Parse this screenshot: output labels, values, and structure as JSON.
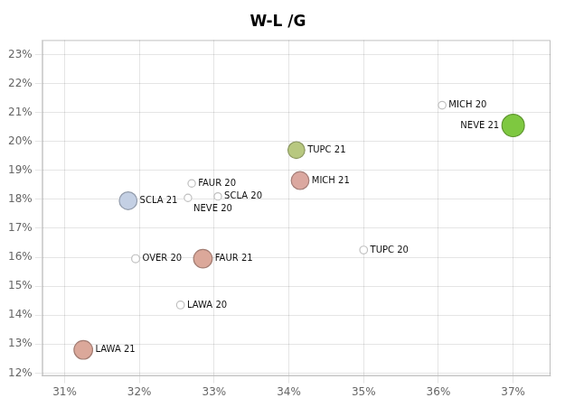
{
  "chart_data": {
    "type": "bubble",
    "title": "W-L /G",
    "labels": [
      "LAWA 21",
      "OVER 20",
      "SCLA 21",
      "LAWA 20",
      "NEVE 20",
      "FAUR 20",
      "SCLA 20",
      "FAUR 21",
      "TUPC 21",
      "MICH 21",
      "TUPC 20",
      "MICH 20",
      "NEVE 21"
    ],
    "x": [
      0.3125,
      0.3195,
      0.3185,
      0.3255,
      0.3265,
      0.327,
      0.3305,
      0.3285,
      0.341,
      0.3415,
      0.35,
      0.3605,
      0.37
    ],
    "values": [
      0.128,
      0.1595,
      0.1795,
      0.1435,
      0.1805,
      0.1855,
      0.181,
      0.1595,
      0.197,
      0.1865,
      0.1625,
      0.2125,
      0.2055
    ],
    "sizes": [
      220,
      40,
      200,
      38,
      35,
      35,
      35,
      220,
      180,
      200,
      38,
      38,
      320
    ],
    "colors": [
      "#dba89a",
      "#ffffff",
      "#c4d0e4",
      "#ffffff",
      "#ffffff",
      "#ffffff",
      "#ffffff",
      "#dba89a",
      "#b8c880",
      "#dba8a0",
      "#ffffff",
      "#ffffff",
      "#7ec840"
    ],
    "xlim": [
      0.307,
      0.375
    ],
    "ylim": [
      0.119,
      0.235
    ],
    "xticks": [
      {
        "value": 0.31,
        "label": "31%"
      },
      {
        "value": 0.32,
        "label": "32%"
      },
      {
        "value": 0.33,
        "label": "33%"
      },
      {
        "value": 0.34,
        "label": "34%"
      },
      {
        "value": 0.35,
        "label": "35%"
      },
      {
        "value": 0.36,
        "label": "36%"
      },
      {
        "value": 0.37,
        "label": "37%"
      }
    ],
    "yticks": [
      {
        "value": 0.12,
        "label": "12%"
      },
      {
        "value": 0.13,
        "label": "13%"
      },
      {
        "value": 0.14,
        "label": "14%"
      },
      {
        "value": 0.15,
        "label": "15%"
      },
      {
        "value": 0.16,
        "label": "16%"
      },
      {
        "value": 0.17,
        "label": "17%"
      },
      {
        "value": 0.18,
        "label": "18%"
      },
      {
        "value": 0.19,
        "label": "19%"
      },
      {
        "value": 0.2,
        "label": "20%"
      },
      {
        "value": 0.21,
        "label": "21%"
      },
      {
        "value": 0.22,
        "label": "22%"
      },
      {
        "value": 0.23,
        "label": "23%"
      }
    ],
    "grid": true
  }
}
